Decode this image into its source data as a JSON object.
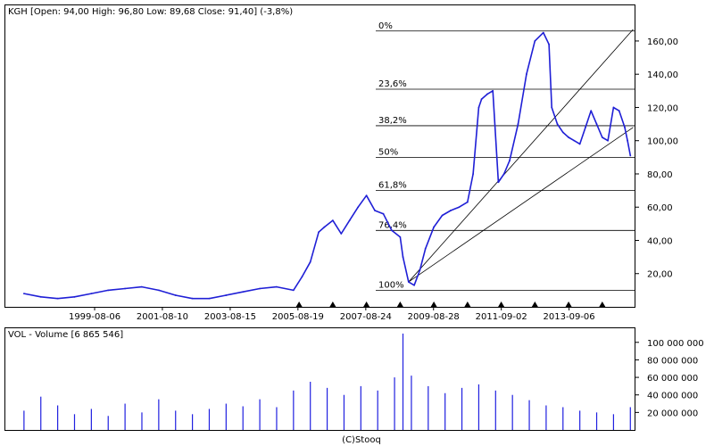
{
  "header": {
    "ticker": "KGH",
    "ohlc_text": "KGH [Open: 94,00  High: 96,80  Low: 89,68  Close: 91,40] (-3,8%)"
  },
  "volume_header": "VOL - Volume [6 865 546]",
  "credit": "(C)Stooq",
  "colors": {
    "price_line": "#1f1fd6",
    "volume_bars": "#2020e0",
    "grid": "#000000",
    "fib_line": "#000000",
    "trend_line": "#000000",
    "event_marker": "#000000"
  },
  "chart_data": [
    {
      "type": "line",
      "title": "KGH [Open: 94,00  High: 96,80  Low: 89,68  Close: 91,40] (-3,8%)",
      "series": [
        {
          "name": "KGH",
          "x": [
            "1997-07",
            "1998-01",
            "1998-07",
            "1999-01",
            "1999-07",
            "2000-01",
            "2000-07",
            "2001-01",
            "2001-07",
            "2002-01",
            "2002-07",
            "2003-01",
            "2003-07",
            "2004-01",
            "2004-07",
            "2005-01",
            "2005-07",
            "2005-10",
            "2006-01",
            "2006-04",
            "2006-06",
            "2006-09",
            "2006-12",
            "2007-03",
            "2007-06",
            "2007-09",
            "2007-12",
            "2008-03",
            "2008-06",
            "2008-09",
            "2008-10",
            "2008-12",
            "2009-02",
            "2009-04",
            "2009-06",
            "2009-09",
            "2009-12",
            "2010-03",
            "2010-06",
            "2010-09",
            "2010-11",
            "2011-01",
            "2011-02",
            "2011-04",
            "2011-06",
            "2011-08",
            "2011-10",
            "2011-12",
            "2012-03",
            "2012-06",
            "2012-09",
            "2012-12",
            "2013-02",
            "2013-03",
            "2013-05",
            "2013-07",
            "2013-09",
            "2013-11",
            "2014-01",
            "2014-03",
            "2014-05",
            "2014-07",
            "2014-09",
            "2014-11",
            "2015-01",
            "2015-03",
            "2015-05",
            "2015-06",
            "2015-07"
          ],
          "values": [
            8,
            6,
            5,
            6,
            8,
            10,
            11,
            12,
            10,
            7,
            5,
            5,
            7,
            9,
            11,
            12,
            10,
            18,
            27,
            45,
            48,
            52,
            44,
            52,
            60,
            67,
            58,
            56,
            46,
            42,
            30,
            15,
            13,
            22,
            35,
            48,
            55,
            58,
            60,
            63,
            80,
            120,
            125,
            128,
            130,
            75,
            80,
            88,
            110,
            140,
            160,
            165,
            158,
            120,
            110,
            105,
            102,
            100,
            98,
            108,
            118,
            110,
            102,
            100,
            120,
            118,
            108,
            100,
            91
          ]
        }
      ],
      "x_tick_labels": [
        "1999-08-06",
        "2001-08-10",
        "2003-08-15",
        "2005-08-19",
        "2007-08-24",
        "2009-08-28",
        "2011-09-02",
        "2013-09-06"
      ],
      "y_tick_labels": [
        "20,00",
        "40,00",
        "60,00",
        "80,00",
        "100,00",
        "120,00",
        "140,00",
        "160,00"
      ],
      "ylim": [
        0,
        175
      ],
      "fibonacci": {
        "levels": [
          {
            "label": "0%",
            "value": 166
          },
          {
            "label": "23,6%",
            "value": 131
          },
          {
            "label": "38,2%",
            "value": 109
          },
          {
            "label": "50%",
            "value": 90
          },
          {
            "label": "61,8%",
            "value": 70
          },
          {
            "label": "76,4%",
            "value": 46
          },
          {
            "label": "100%",
            "value": 10
          }
        ]
      },
      "trend_lines": [
        {
          "from": {
            "x": "2008-12",
            "y": 15
          },
          "to": {
            "x": "2015-08",
            "y": 167
          }
        },
        {
          "from": {
            "x": "2008-12",
            "y": 15
          },
          "to": {
            "x": "2015-08",
            "y": 108
          }
        }
      ],
      "event_markers_x": [
        "2005-09",
        "2006-09",
        "2007-09",
        "2008-09",
        "2009-09",
        "2010-09",
        "2011-09",
        "2012-09",
        "2013-09",
        "2014-09"
      ],
      "grid": "horizontal at Fibonacci levels"
    },
    {
      "type": "bar",
      "title": "VOL - Volume [6 865 546]",
      "series": [
        {
          "name": "VOL - Volume",
          "x": [
            "1997-07",
            "1998-01",
            "1998-07",
            "1999-01",
            "1999-07",
            "2000-01",
            "2000-07",
            "2001-01",
            "2001-07",
            "2002-01",
            "2002-07",
            "2003-01",
            "2003-07",
            "2004-01",
            "2004-07",
            "2005-01",
            "2005-07",
            "2006-01",
            "2006-07",
            "2007-01",
            "2007-07",
            "2008-01",
            "2008-07",
            "2008-10",
            "2009-01",
            "2009-07",
            "2010-01",
            "2010-07",
            "2011-01",
            "2011-07",
            "2012-01",
            "2012-07",
            "2013-01",
            "2013-07",
            "2014-01",
            "2014-07",
            "2015-01",
            "2015-07"
          ],
          "values": [
            22000000,
            38000000,
            28000000,
            18000000,
            24000000,
            16000000,
            30000000,
            20000000,
            35000000,
            22000000,
            18000000,
            24000000,
            30000000,
            27000000,
            35000000,
            26000000,
            45000000,
            55000000,
            48000000,
            40000000,
            50000000,
            45000000,
            60000000,
            110000000,
            62000000,
            50000000,
            42000000,
            48000000,
            52000000,
            45000000,
            40000000,
            34000000,
            28000000,
            26000000,
            22000000,
            20000000,
            18000000,
            26000000
          ]
        }
      ],
      "y_tick_labels": [
        "20 000 000",
        "40 000 000",
        "60 000 000",
        "80 000 000",
        "100 000 000"
      ],
      "ylim": [
        0,
        112000000
      ]
    }
  ]
}
